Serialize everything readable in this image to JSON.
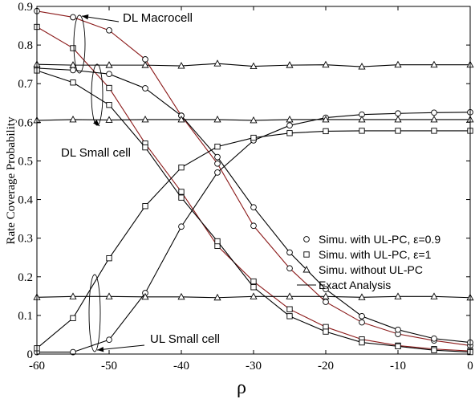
{
  "chart_data": {
    "type": "line",
    "xlabel": "ρ",
    "ylabel": "Rate Coverage Probability",
    "xlim": [
      -60,
      0
    ],
    "ylim": [
      0,
      0.9
    ],
    "xticks": [
      -60,
      -50,
      -40,
      -30,
      -20,
      -10,
      0
    ],
    "yticks": [
      0,
      0.1,
      0.2,
      0.3,
      0.4,
      0.5,
      0.6,
      0.7,
      0.8,
      0.9
    ],
    "x": [
      -60,
      -55,
      -50,
      -45,
      -40,
      -35,
      -30,
      -25,
      -20,
      -15,
      -10,
      -5,
      0
    ],
    "legend": {
      "placement": "right",
      "entries": [
        {
          "marker": "circle",
          "label": "Simu. with UL-PC, ε=0.9"
        },
        {
          "marker": "square",
          "label": "Simu. with UL-PC, ε=1"
        },
        {
          "marker": "triangle",
          "label": "Simu. without UL-PC"
        },
        {
          "marker": "line",
          "label": "Exact Analysis"
        }
      ]
    },
    "annotations": [
      {
        "text": "DL Macrocell"
      },
      {
        "text": "DL Small cell"
      },
      {
        "text": "UL Small cell"
      }
    ],
    "series": [
      {
        "marker": "circle",
        "line_color": "#8b1a1a",
        "values": [
          0.888,
          0.872,
          0.838,
          0.763,
          0.617,
          0.493,
          0.332,
          0.222,
          0.135,
          0.082,
          0.052,
          0.035,
          0.022
        ]
      },
      {
        "marker": "square",
        "line_color": "#8b1a1a",
        "values": [
          0.847,
          0.792,
          0.689,
          0.545,
          0.42,
          0.28,
          0.188,
          0.116,
          0.07,
          0.038,
          0.022,
          0.013,
          0.008
        ]
      },
      {
        "marker": "circle",
        "line_color": "#000000",
        "values": [
          0.74,
          0.735,
          0.725,
          0.688,
          0.617,
          0.51,
          0.38,
          0.263,
          0.168,
          0.098,
          0.063,
          0.04,
          0.03
        ]
      },
      {
        "marker": "square",
        "line_color": "#000000",
        "values": [
          0.734,
          0.703,
          0.645,
          0.535,
          0.405,
          0.292,
          0.173,
          0.098,
          0.058,
          0.03,
          0.02,
          0.01,
          0.005
        ]
      },
      {
        "marker": "circle",
        "line_color": "#000000",
        "values": [
          0.005,
          0.005,
          0.037,
          0.158,
          0.33,
          0.47,
          0.553,
          0.592,
          0.612,
          0.62,
          0.623,
          0.625,
          0.626
        ]
      },
      {
        "marker": "square",
        "line_color": "#000000",
        "values": [
          0.015,
          0.093,
          0.248,
          0.383,
          0.483,
          0.537,
          0.56,
          0.572,
          0.577,
          0.578,
          0.578,
          0.578,
          0.578
        ]
      },
      {
        "marker": "triangle",
        "line_color": "#000000",
        "values": [
          0.75,
          0.748,
          0.748,
          0.748,
          0.746,
          0.752,
          0.745,
          0.748,
          0.749,
          0.744,
          0.749,
          0.749,
          0.749
        ]
      },
      {
        "marker": "triangle",
        "line_color": "#000000",
        "values": [
          0.605,
          0.607,
          0.606,
          0.607,
          0.607,
          0.607,
          0.605,
          0.607,
          0.607,
          0.607,
          0.607,
          0.607,
          0.607
        ]
      },
      {
        "marker": "triangle",
        "line_color": "#000000",
        "values": [
          0.147,
          0.149,
          0.149,
          0.148,
          0.148,
          0.146,
          0.149,
          0.149,
          0.149,
          0.147,
          0.149,
          0.149,
          0.146
        ]
      }
    ]
  }
}
